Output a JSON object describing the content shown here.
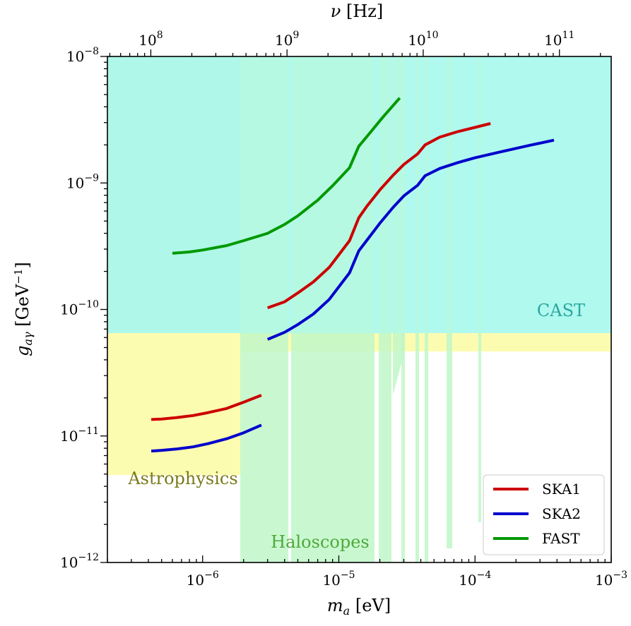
{
  "chart_data": {
    "type": "line",
    "xlabel": "m_a [eV]",
    "ylabel": "g_aγ [GeV⁻¹]",
    "top_xlabel": "ν [Hz]",
    "xscale": "log",
    "yscale": "log",
    "xlim": [
      2e-07,
      0.001
    ],
    "ylim": [
      1e-12,
      1e-08
    ],
    "top_xlim": [
      48000000.0,
      240000000000.0
    ],
    "grid": false,
    "legend_position": "bottom-right",
    "x_ticks": [
      {
        "value": 1e-06,
        "label": "10",
        "exp": "−6"
      },
      {
        "value": 1e-05,
        "label": "10",
        "exp": "−5"
      },
      {
        "value": 0.0001,
        "label": "10",
        "exp": "−4"
      },
      {
        "value": 0.001,
        "label": "10",
        "exp": "−3"
      }
    ],
    "y_ticks": [
      {
        "value": 1e-12,
        "label": "10",
        "exp": "−12"
      },
      {
        "value": 1e-11,
        "label": "10",
        "exp": "−11"
      },
      {
        "value": 1e-10,
        "label": "10",
        "exp": "−10"
      },
      {
        "value": 1e-09,
        "label": "10",
        "exp": "−9"
      },
      {
        "value": 1e-08,
        "label": "10",
        "exp": "−8"
      }
    ],
    "top_ticks": [
      {
        "value": 100000000.0,
        "label": "10",
        "exp": "8"
      },
      {
        "value": 1000000000.0,
        "label": "10",
        "exp": "9"
      },
      {
        "value": 10000000000.0,
        "label": "10",
        "exp": "10"
      },
      {
        "value": 100000000000.0,
        "label": "10",
        "exp": "11"
      }
    ],
    "regions": [
      {
        "name": "CAST",
        "color": "#aff7e8",
        "opacity": 1.0
      },
      {
        "name": "Astrophysics",
        "color": "#fcfcb0",
        "opacity": 1.0
      },
      {
        "name": "Haloscopes",
        "color": "#c0f7c8",
        "opacity": 0.85
      }
    ],
    "series": [
      {
        "name": "SKA1",
        "color": "#cc0000",
        "segments": [
          {
            "x": [
              4.2e-07,
              5e-07,
              6.5e-07,
              8.5e-07,
              1.1e-06,
              1.5e-06,
              2e-06,
              2.7e-06
            ],
            "y": [
              1.35e-11,
              1.36e-11,
              1.4e-11,
              1.45e-11,
              1.53e-11,
              1.65e-11,
              1.85e-11,
              2.1e-11
            ]
          },
          {
            "x": [
              3e-06,
              4e-06,
              5e-06,
              6.5e-06,
              8.5e-06,
              1.2e-05,
              1.4e-05,
              1.6e-05,
              2e-05,
              2.5e-05,
              3e-05,
              3.8e-05,
              4.3e-05,
              5.5e-05,
              7.5e-05,
              0.0001,
              0.00013
            ],
            "y": [
              1.03e-10,
              1.15e-10,
              1.35e-10,
              1.65e-10,
              2.15e-10,
              3.5e-10,
              5.3e-10,
              6.5e-10,
              8.8e-10,
              1.15e-09,
              1.4e-09,
              1.7e-09,
              2e-09,
              2.3e-09,
              2.55e-09,
              2.75e-09,
              2.95e-09
            ]
          }
        ]
      },
      {
        "name": "SKA2",
        "color": "#0000cc",
        "segments": [
          {
            "x": [
              4.2e-07,
              5e-07,
              6.5e-07,
              8.5e-07,
              1.1e-06,
              1.5e-06,
              2e-06,
              2.7e-06
            ],
            "y": [
              7.6e-12,
              7.7e-12,
              7.9e-12,
              8.2e-12,
              8.7e-12,
              9.5e-12,
              1.06e-11,
              1.22e-11
            ]
          },
          {
            "x": [
              3e-06,
              4e-06,
              5e-06,
              6.5e-06,
              8.5e-06,
              1.2e-05,
              1.4e-05,
              1.6e-05,
              2e-05,
              2.5e-05,
              3e-05,
              3.8e-05,
              4.3e-05,
              5.5e-05,
              7.5e-05,
              0.0001,
              0.00015,
              0.00025,
              0.00038
            ],
            "y": [
              5.8e-11,
              6.6e-11,
              7.6e-11,
              9.2e-11,
              1.2e-10,
              1.95e-10,
              2.9e-10,
              3.5e-10,
              4.8e-10,
              6.4e-10,
              7.9e-10,
              9.6e-10,
              1.14e-09,
              1.3e-09,
              1.45e-09,
              1.58e-09,
              1.75e-09,
              1.98e-09,
              2.18e-09
            ]
          }
        ]
      },
      {
        "name": "FAST",
        "color": "#009900",
        "segments": [
          {
            "x": [
              6e-07,
              8e-07,
              1e-06,
              1.5e-06,
              2e-06,
              3e-06,
              4e-06,
              5e-06,
              7e-06,
              9e-06,
              1.2e-05,
              1.4e-05,
              1.7e-05,
              2.1e-05,
              2.8e-05
            ],
            "y": [
              2.78e-10,
              2.85e-10,
              2.95e-10,
              3.2e-10,
              3.5e-10,
              4e-10,
              4.7e-10,
              5.5e-10,
              7.3e-10,
              9.5e-10,
              1.32e-09,
              1.95e-09,
              2.5e-09,
              3.3e-09,
              4.7e-09
            ]
          }
        ]
      }
    ],
    "annotations": [
      "CAST",
      "Astrophysics",
      "Haloscopes"
    ]
  }
}
